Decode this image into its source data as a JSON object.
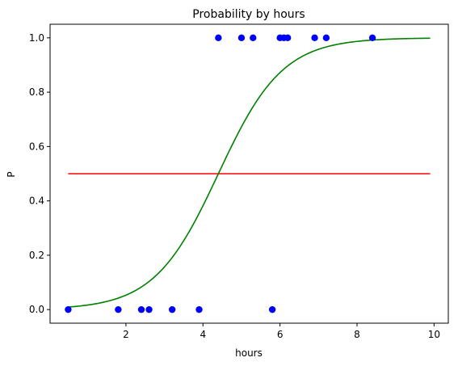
{
  "chart_data": {
    "type": "scatter",
    "title": "Probability by hours",
    "xlabel": "hours",
    "ylabel": "P",
    "xlim": [
      0.03,
      10.37
    ],
    "ylim": [
      -0.05,
      1.05
    ],
    "xticks": [
      2,
      4,
      6,
      8,
      10
    ],
    "xtick_labels": [
      "2",
      "4",
      "6",
      "8",
      "10"
    ],
    "yticks": [
      0.0,
      0.2,
      0.4,
      0.6,
      0.8,
      1.0
    ],
    "ytick_labels": [
      "0.0",
      "0.2",
      "0.4",
      "0.6",
      "0.8",
      "1.0"
    ],
    "grid": false,
    "series": [
      {
        "type": "scatter",
        "color": "#0000ff",
        "x": [
          0.5,
          1.8,
          2.4,
          2.6,
          3.2,
          3.9,
          5.8,
          4.4,
          5.0,
          5.3,
          6.0,
          6.1,
          6.2,
          6.9,
          7.2,
          8.4
        ],
        "y": [
          0,
          0,
          0,
          0,
          0,
          0,
          0,
          1,
          1,
          1,
          1,
          1,
          1,
          1,
          1,
          1
        ]
      },
      {
        "type": "line",
        "color": "#ff0000",
        "x": [
          0.5,
          9.9
        ],
        "y": [
          0.5,
          0.5
        ]
      },
      {
        "type": "line",
        "color": "#008000",
        "curve": "logistic",
        "x_range": [
          0.5,
          9.9
        ],
        "midpoint": 4.4,
        "steepness": 1.2
      }
    ]
  }
}
